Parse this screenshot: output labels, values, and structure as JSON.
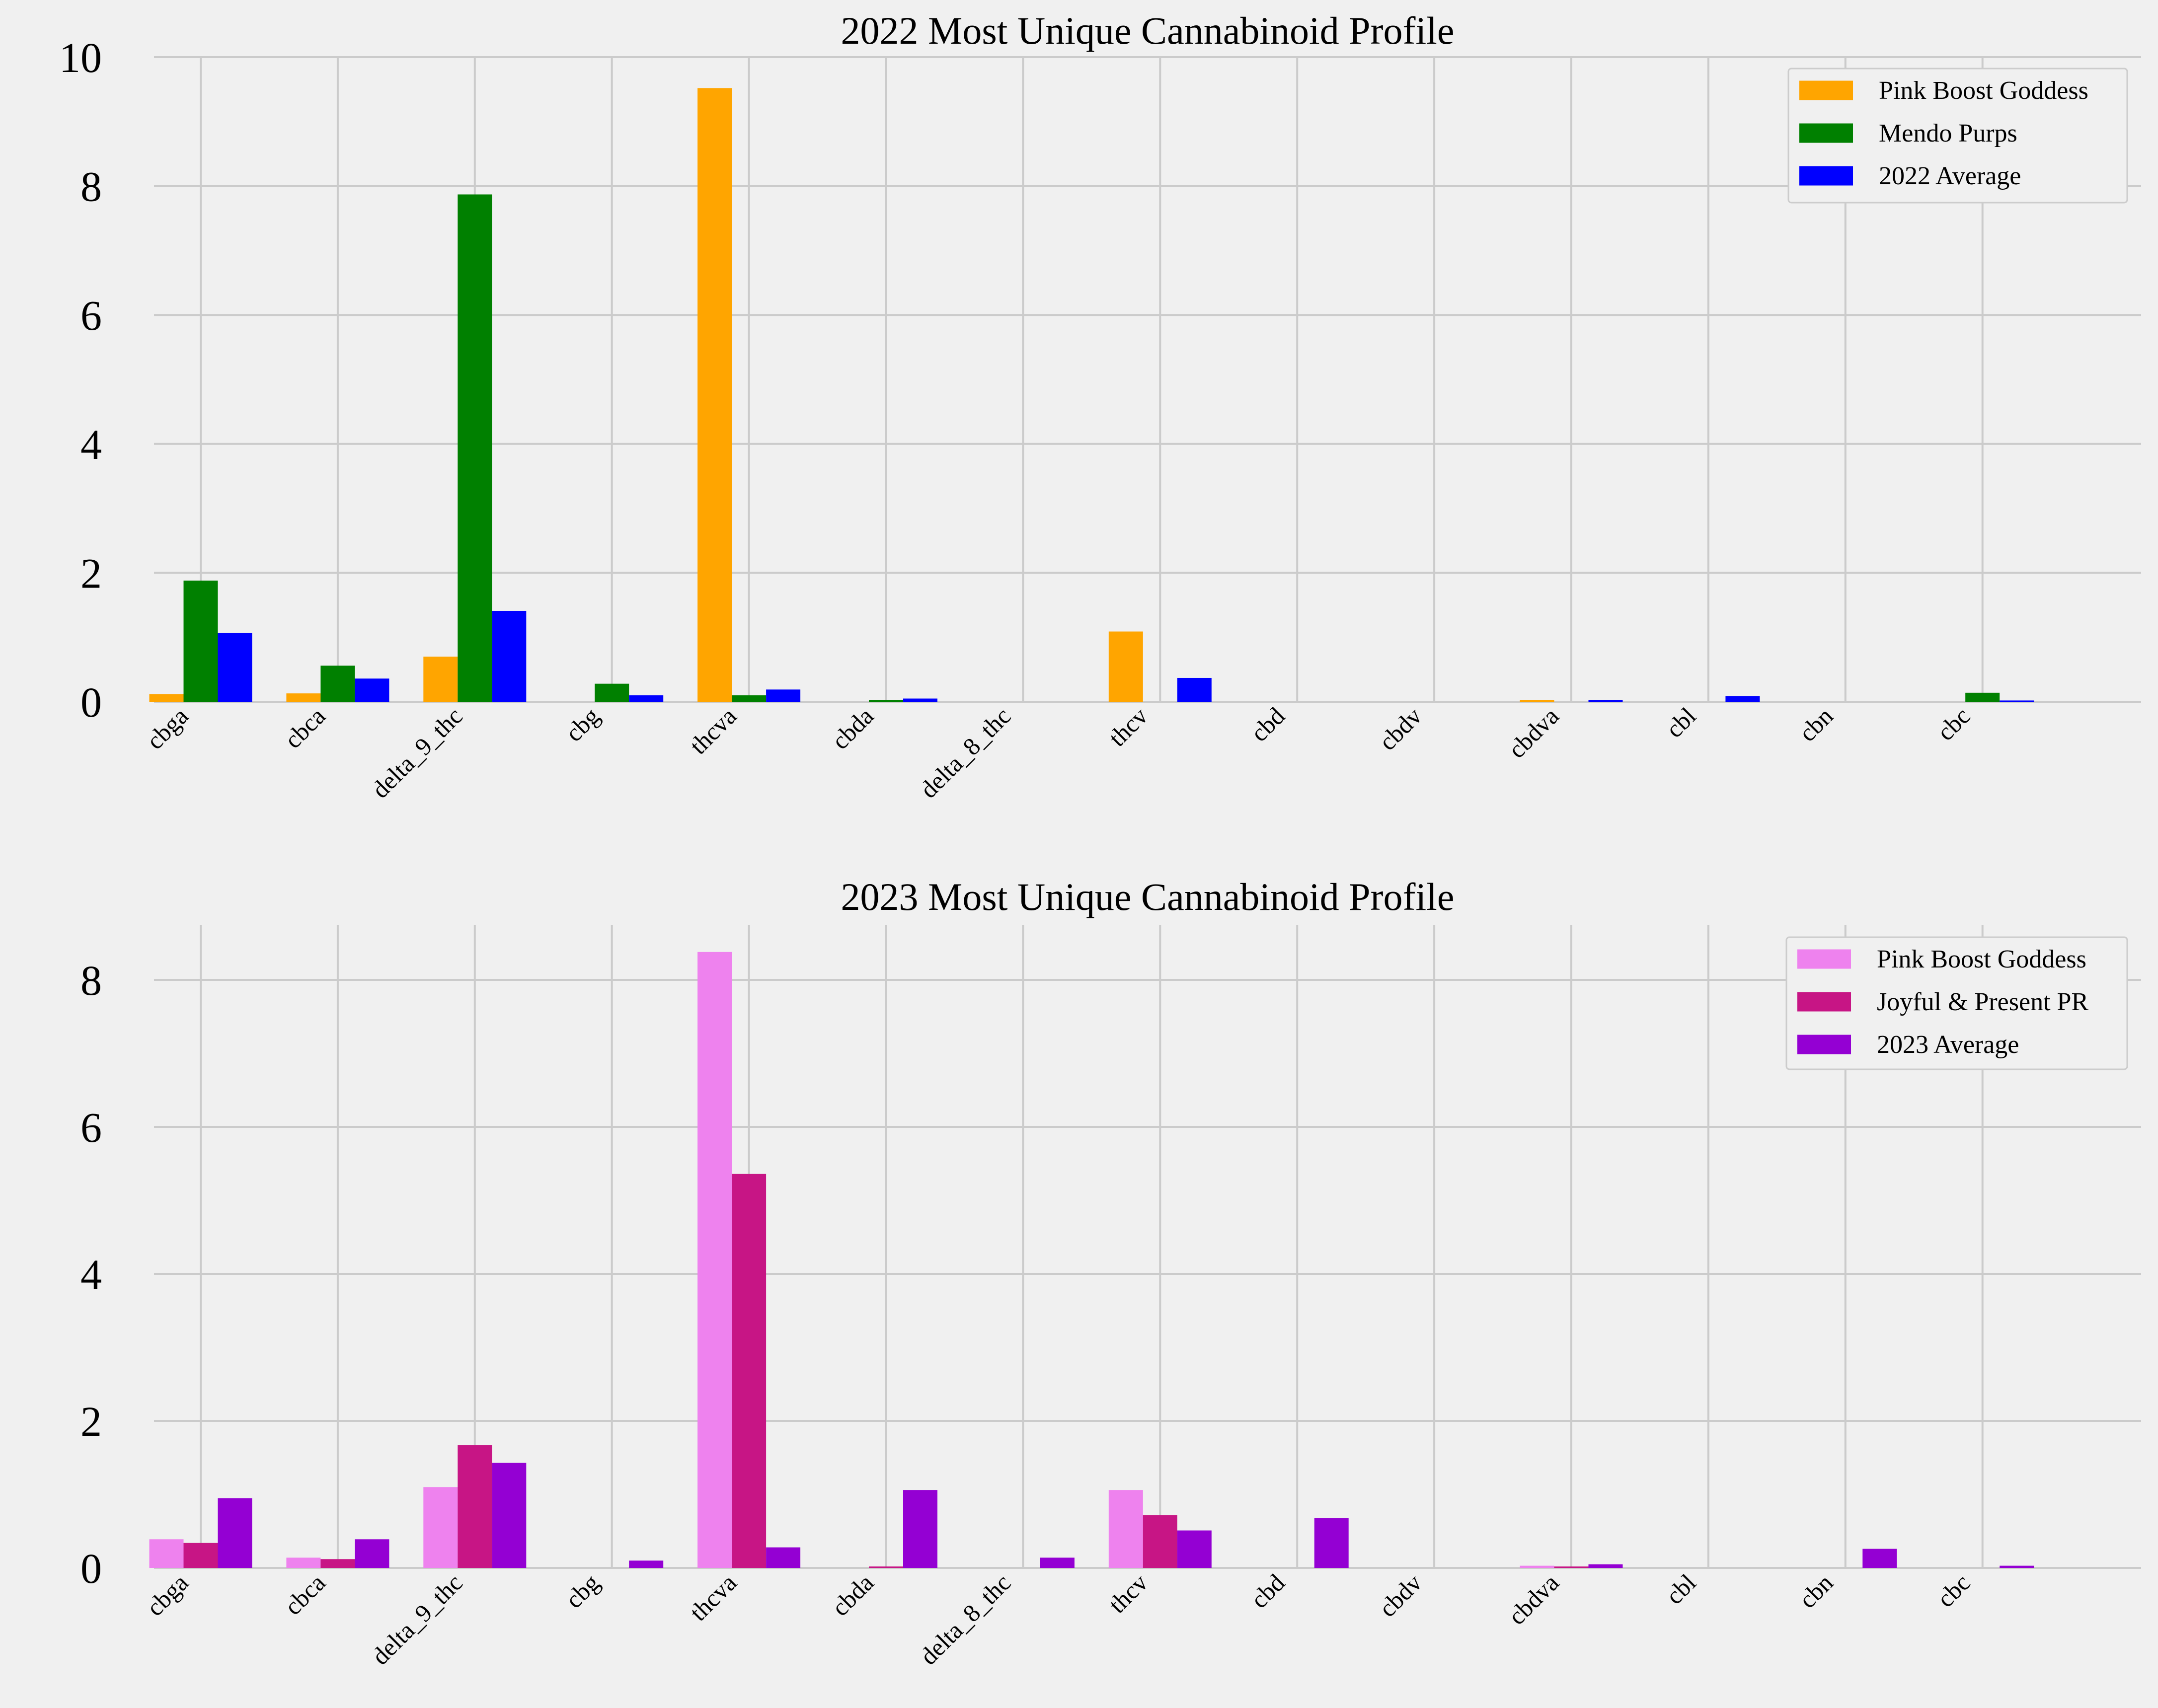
{
  "chart_data": [
    {
      "type": "bar",
      "title": "2022 Most Unique Cannabinoid Profile",
      "xlabel": "",
      "ylabel": "",
      "ylim": [
        0,
        10
      ],
      "yticks": [
        0,
        2,
        4,
        6,
        8,
        10
      ],
      "grid": true,
      "legend_position": "top-right",
      "categories": [
        "cbga",
        "cbca",
        "delta_9_thc",
        "cbg",
        "thcva",
        "cbda",
        "delta_8_thc",
        "thcv",
        "cbd",
        "cbdv",
        "cbdva",
        "cbl",
        "cbn",
        "cbc"
      ],
      "series": [
        {
          "name": "Pink Boost Goddess",
          "color": "#ffa500",
          "values": [
            0.12,
            0.13,
            0.7,
            0,
            9.52,
            0,
            0,
            1.09,
            0,
            0,
            0.03,
            0,
            0,
            0
          ]
        },
        {
          "name": "Mendo Purps",
          "color": "#008000",
          "values": [
            1.88,
            0.56,
            7.87,
            0.28,
            0.1,
            0.03,
            0,
            0,
            0,
            0,
            0,
            0,
            0,
            0.14
          ]
        },
        {
          "name": "2022 Average",
          "color": "#0000ff",
          "values": [
            1.07,
            0.36,
            1.41,
            0.1,
            0.19,
            0.05,
            0,
            0.37,
            0,
            0,
            0.03,
            0.09,
            0,
            0.02
          ]
        }
      ]
    },
    {
      "type": "bar",
      "title": "2023 Most Unique Cannabinoid Profile",
      "xlabel": "",
      "ylabel": "",
      "ylim": [
        0,
        8.75
      ],
      "yticks": [
        0,
        2,
        4,
        6,
        8
      ],
      "grid": true,
      "legend_position": "top-right",
      "categories": [
        "cbga",
        "cbca",
        "delta_9_thc",
        "cbg",
        "thcva",
        "cbda",
        "delta_8_thc",
        "thcv",
        "cbd",
        "cbdv",
        "cbdva",
        "cbl",
        "cbn",
        "cbc"
      ],
      "series": [
        {
          "name": "Pink Boost Goddess",
          "color": "#ee82ee",
          "values": [
            0.39,
            0.14,
            1.1,
            0,
            8.38,
            0,
            0,
            1.06,
            0,
            0,
            0.03,
            0,
            0,
            0
          ]
        },
        {
          "name": "Joyful & Present PR",
          "color": "#c71585",
          "values": [
            0.34,
            0.12,
            1.67,
            0,
            5.36,
            0.02,
            0,
            0.72,
            0,
            0,
            0.02,
            0,
            0,
            0
          ]
        },
        {
          "name": "2023 Average",
          "color": "#9400d3",
          "values": [
            0.95,
            0.39,
            1.43,
            0.1,
            0.28,
            1.06,
            0.14,
            0.51,
            0.68,
            0,
            0.05,
            0,
            0.26,
            0.03
          ]
        }
      ]
    }
  ]
}
